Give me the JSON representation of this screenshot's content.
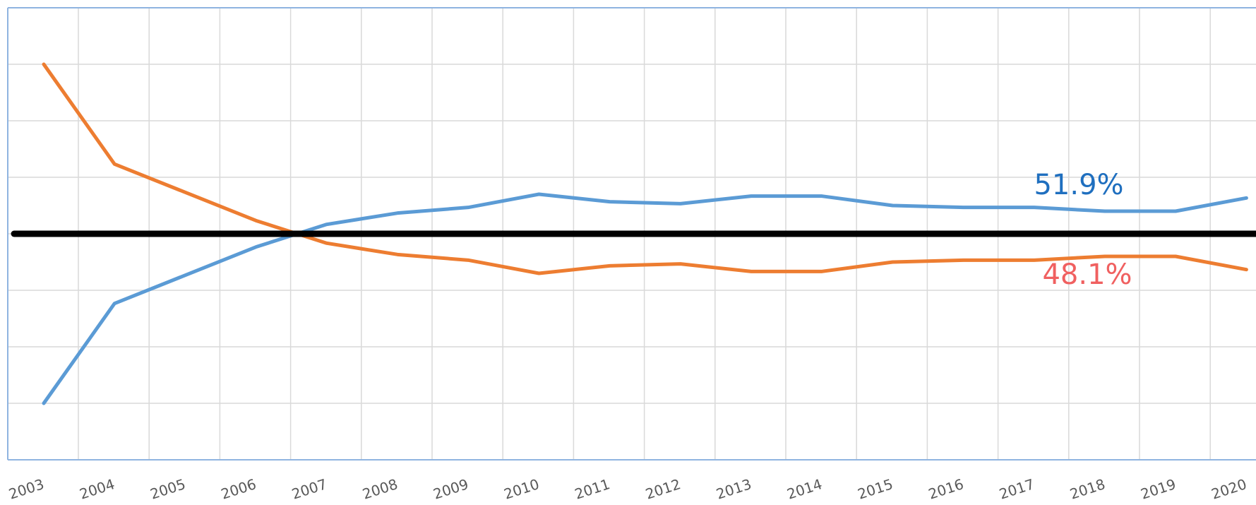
{
  "chart_data": {
    "type": "line",
    "categories": [
      "2003",
      "2004",
      "2005",
      "2006",
      "2007",
      "2008",
      "2009",
      "2010",
      "2011",
      "2012",
      "2013",
      "2014",
      "2015",
      "2016",
      "2017",
      "2018",
      "2019",
      "2020"
    ],
    "series": [
      {
        "color": "#5b9bd5",
        "values": [
          41.0,
          46.3,
          47.8,
          49.3,
          50.5,
          51.1,
          51.4,
          52.1,
          51.7,
          51.6,
          52.0,
          52.0,
          51.5,
          51.4,
          51.4,
          51.2,
          51.2,
          51.9
        ]
      },
      {
        "color": "#ed7d31",
        "values": [
          59.0,
          53.7,
          52.2,
          50.7,
          49.5,
          48.9,
          48.6,
          47.9,
          48.3,
          48.4,
          48.0,
          48.0,
          48.5,
          48.6,
          48.6,
          48.8,
          48.8,
          48.1
        ]
      }
    ],
    "annotations": [
      {
        "text": "51.9%",
        "color": "#1f6fbf"
      },
      {
        "text": "48.1%",
        "color": "#f06060"
      }
    ],
    "reference_line": 50,
    "ylim": [
      38,
      62
    ],
    "yticks": [
      41,
      44,
      47,
      50,
      53,
      56,
      59
    ],
    "grid": true
  }
}
